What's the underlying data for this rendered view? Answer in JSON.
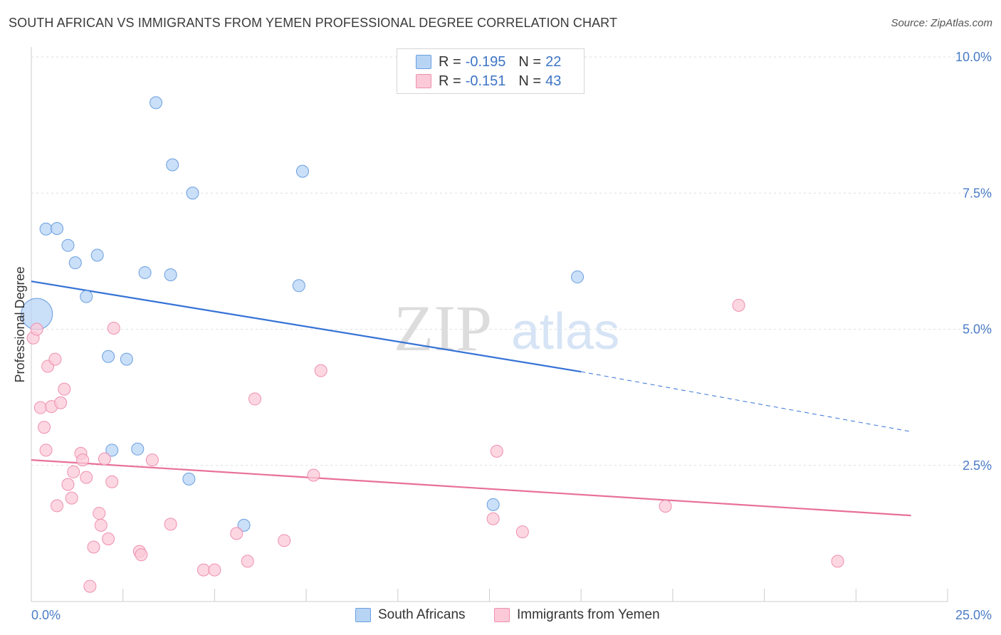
{
  "title": "SOUTH AFRICAN VS IMMIGRANTS FROM YEMEN PROFESSIONAL DEGREE CORRELATION CHART",
  "source": "Source: ZipAtlas.com",
  "watermark": {
    "zip": "ZIP",
    "atlas": "atlas"
  },
  "legend": {
    "r_label": "R =",
    "n_label": "N =",
    "series": [
      {
        "r": "-0.195",
        "n": "22",
        "fill": "#b8d4f5",
        "stroke": "#6a9fe0"
      },
      {
        "r": "-0.151",
        "n": "43",
        "fill": "#fbc9d8",
        "stroke": "#ee8fb0"
      }
    ]
  },
  "bottom_legend": [
    "South Africans",
    "Immigrants from Yemen"
  ],
  "chart_data": {
    "type": "scatter",
    "title": "SOUTH AFRICAN VS IMMIGRANTS FROM YEMEN PROFESSIONAL DEGREE CORRELATION CHART",
    "xlabel": "",
    "ylabel": "Professional Degree",
    "xlim": [
      0,
      25
    ],
    "ylim": [
      0,
      10
    ],
    "x_tick_labels": [
      "0.0%",
      "25.0%"
    ],
    "y_ticks": [
      2.5,
      5.0,
      7.5,
      10.0
    ],
    "y_tick_labels": [
      "2.5%",
      "5.0%",
      "7.5%",
      "10.0%"
    ],
    "grid": true,
    "series": [
      {
        "name": "South Africans",
        "color": "#3572d6",
        "point_fill": "#b8d4f5",
        "point_stroke": "#6a9fe0",
        "trend": {
          "x0": 0,
          "y0": 5.88,
          "x1": 15.0,
          "y1": 4.22,
          "dashed_to": 24.0,
          "dashed_y": 3.12
        },
        "points": [
          {
            "x": 0.15,
            "y": 5.28,
            "big": true
          },
          {
            "x": 0.4,
            "y": 6.84
          },
          {
            "x": 0.7,
            "y": 6.85
          },
          {
            "x": 1.0,
            "y": 6.54
          },
          {
            "x": 1.2,
            "y": 6.22
          },
          {
            "x": 1.5,
            "y": 5.6
          },
          {
            "x": 1.8,
            "y": 6.36
          },
          {
            "x": 2.1,
            "y": 4.5
          },
          {
            "x": 2.2,
            "y": 2.78
          },
          {
            "x": 2.6,
            "y": 4.45
          },
          {
            "x": 2.9,
            "y": 2.8
          },
          {
            "x": 3.1,
            "y": 6.04
          },
          {
            "x": 3.4,
            "y": 9.16
          },
          {
            "x": 3.8,
            "y": 6.0
          },
          {
            "x": 3.85,
            "y": 8.02
          },
          {
            "x": 4.4,
            "y": 7.5
          },
          {
            "x": 4.3,
            "y": 2.25
          },
          {
            "x": 5.8,
            "y": 1.4
          },
          {
            "x": 7.3,
            "y": 5.8
          },
          {
            "x": 7.4,
            "y": 7.9
          },
          {
            "x": 12.6,
            "y": 1.78
          },
          {
            "x": 14.9,
            "y": 5.96
          }
        ]
      },
      {
        "name": "Immigrants from Yemen",
        "color": "#e8709a",
        "point_fill": "#fbc9d8",
        "point_stroke": "#ee8fb0",
        "trend": {
          "x0": 0,
          "y0": 2.6,
          "x1": 24.0,
          "y1": 1.58
        },
        "points": [
          {
            "x": 0.05,
            "y": 4.84
          },
          {
            "x": 0.15,
            "y": 5.0
          },
          {
            "x": 0.25,
            "y": 3.56
          },
          {
            "x": 0.35,
            "y": 3.2
          },
          {
            "x": 0.4,
            "y": 2.78
          },
          {
            "x": 0.45,
            "y": 4.32
          },
          {
            "x": 0.55,
            "y": 3.58
          },
          {
            "x": 0.65,
            "y": 4.45
          },
          {
            "x": 0.7,
            "y": 1.76
          },
          {
            "x": 0.8,
            "y": 3.65
          },
          {
            "x": 0.9,
            "y": 3.9
          },
          {
            "x": 1.0,
            "y": 2.15
          },
          {
            "x": 1.1,
            "y": 1.9
          },
          {
            "x": 1.15,
            "y": 2.38
          },
          {
            "x": 1.35,
            "y": 2.72
          },
          {
            "x": 1.4,
            "y": 2.6
          },
          {
            "x": 1.5,
            "y": 2.28
          },
          {
            "x": 1.6,
            "y": 0.28
          },
          {
            "x": 1.7,
            "y": 1.0
          },
          {
            "x": 1.85,
            "y": 1.62
          },
          {
            "x": 1.9,
            "y": 1.4
          },
          {
            "x": 2.0,
            "y": 2.62
          },
          {
            "x": 2.1,
            "y": 1.15
          },
          {
            "x": 2.2,
            "y": 2.2
          },
          {
            "x": 2.25,
            "y": 5.02
          },
          {
            "x": 2.95,
            "y": 0.92
          },
          {
            "x": 3.0,
            "y": 0.86
          },
          {
            "x": 3.3,
            "y": 2.6
          },
          {
            "x": 3.8,
            "y": 1.42
          },
          {
            "x": 4.7,
            "y": 0.58
          },
          {
            "x": 5.0,
            "y": 0.58
          },
          {
            "x": 5.6,
            "y": 1.25
          },
          {
            "x": 5.9,
            "y": 0.74
          },
          {
            "x": 6.1,
            "y": 3.72
          },
          {
            "x": 6.9,
            "y": 1.12
          },
          {
            "x": 7.7,
            "y": 2.32
          },
          {
            "x": 7.9,
            "y": 4.24
          },
          {
            "x": 12.6,
            "y": 1.52
          },
          {
            "x": 12.7,
            "y": 2.76
          },
          {
            "x": 13.4,
            "y": 1.28
          },
          {
            "x": 17.3,
            "y": 1.75
          },
          {
            "x": 19.3,
            "y": 5.44
          },
          {
            "x": 22.0,
            "y": 0.74
          }
        ]
      }
    ]
  }
}
